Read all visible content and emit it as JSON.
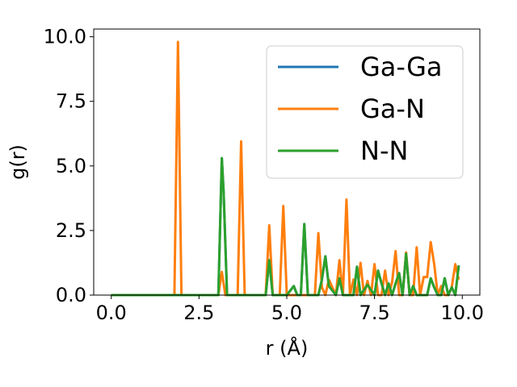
{
  "chart_data": {
    "type": "line",
    "xlabel": "r (Å)",
    "ylabel": "g(r)",
    "xlim": [
      -0.5,
      10.5
    ],
    "ylim": [
      0,
      10.3
    ],
    "xticks": [
      0.0,
      2.5,
      5.0,
      7.5,
      10.0
    ],
    "xtick_labels": [
      "0.0",
      "2.5",
      "5.0",
      "7.5",
      "10.0"
    ],
    "yticks": [
      0.0,
      2.5,
      5.0,
      7.5,
      10.0
    ],
    "ytick_labels": [
      "0.0",
      "2.5",
      "5.0",
      "7.5",
      "10.0"
    ],
    "grid": false,
    "legend_position": "top-right",
    "series": [
      {
        "name": "Ga-Ga",
        "color": "#1f77b4",
        "x": [
          0.0,
          1.8,
          3.05,
          3.15,
          3.2,
          3.3,
          4.4,
          4.5,
          4.6,
          5.0,
          5.2,
          5.3,
          5.4,
          5.5,
          5.6,
          5.9,
          6.0,
          6.1,
          6.2,
          6.4,
          6.5,
          6.6,
          6.9,
          7.0,
          7.1,
          7.3,
          7.5,
          7.6,
          7.7,
          7.8,
          7.9,
          8.0,
          8.1,
          8.2,
          8.3,
          8.4,
          8.5,
          8.6,
          8.7,
          8.9,
          9.0,
          9.1,
          9.2,
          9.3,
          9.4,
          9.5,
          9.6,
          9.7,
          9.8,
          9.9
        ],
        "y": [
          0.0,
          0.0,
          0.0,
          5.3,
          4.0,
          0.0,
          0.0,
          1.35,
          0.0,
          0.0,
          0.35,
          0.0,
          0.0,
          2.75,
          0.0,
          0.0,
          0.6,
          1.5,
          0.35,
          0.0,
          0.65,
          0.0,
          0.0,
          1.1,
          0.0,
          0.4,
          0.0,
          0.95,
          0.45,
          0.0,
          0.45,
          0.0,
          0.45,
          0.85,
          0.0,
          1.6,
          0.0,
          0.35,
          0.0,
          0.0,
          0.0,
          0.65,
          0.3,
          0.0,
          0.0,
          0.65,
          0.0,
          0.3,
          0.0,
          1.15
        ]
      },
      {
        "name": "Ga-N",
        "color": "#ff7f0e",
        "x": [
          0.0,
          1.8,
          1.9,
          2.0,
          3.05,
          3.15,
          3.25,
          3.6,
          3.7,
          3.8,
          4.4,
          4.5,
          4.6,
          4.8,
          4.9,
          5.0,
          5.8,
          5.9,
          6.0,
          6.1,
          6.2,
          6.4,
          6.5,
          6.6,
          6.7,
          6.8,
          6.9,
          7.0,
          7.1,
          7.2,
          7.3,
          7.4,
          7.5,
          7.6,
          7.7,
          7.8,
          7.9,
          8.0,
          8.1,
          8.2,
          8.3,
          8.4,
          8.5,
          8.6,
          8.7,
          8.8,
          8.9,
          9.0,
          9.1,
          9.2,
          9.3,
          9.4,
          9.5,
          9.6,
          9.7,
          9.8,
          9.9
        ],
        "y": [
          0.0,
          0.0,
          9.8,
          0.0,
          0.0,
          0.9,
          0.0,
          0.0,
          5.95,
          0.0,
          0.0,
          2.7,
          0.0,
          0.0,
          3.45,
          0.0,
          0.0,
          2.4,
          0.3,
          0.0,
          0.6,
          0.0,
          1.35,
          0.0,
          3.7,
          0.0,
          0.6,
          0.0,
          1.25,
          0.0,
          0.55,
          0.0,
          1.2,
          0.0,
          0.0,
          0.95,
          0.0,
          0.5,
          1.7,
          0.0,
          0.0,
          1.65,
          0.0,
          0.0,
          1.85,
          0.0,
          0.7,
          0.7,
          2.05,
          1.2,
          0.0,
          0.35,
          0.0,
          0.0,
          0.3,
          1.2,
          0.6
        ]
      },
      {
        "name": "N-N",
        "color": "#2ca02c",
        "x": [
          0.0,
          1.8,
          3.05,
          3.15,
          3.2,
          3.3,
          4.4,
          4.5,
          4.6,
          5.0,
          5.2,
          5.3,
          5.4,
          5.5,
          5.6,
          5.9,
          6.0,
          6.1,
          6.2,
          6.4,
          6.5,
          6.6,
          6.9,
          7.0,
          7.1,
          7.3,
          7.5,
          7.6,
          7.7,
          7.8,
          7.9,
          8.0,
          8.1,
          8.2,
          8.3,
          8.4,
          8.5,
          8.6,
          8.7,
          8.9,
          9.0,
          9.1,
          9.2,
          9.3,
          9.4,
          9.5,
          9.6,
          9.7,
          9.8,
          9.9
        ],
        "y": [
          0.0,
          0.0,
          0.0,
          5.3,
          4.0,
          0.0,
          0.0,
          1.35,
          0.0,
          0.0,
          0.35,
          0.0,
          0.0,
          2.75,
          0.0,
          0.0,
          0.6,
          1.5,
          0.35,
          0.0,
          0.65,
          0.0,
          0.0,
          1.1,
          0.0,
          0.4,
          0.0,
          0.95,
          0.45,
          0.0,
          0.45,
          0.0,
          0.45,
          0.85,
          0.0,
          1.6,
          0.0,
          0.35,
          0.0,
          0.0,
          0.0,
          0.65,
          0.3,
          0.0,
          0.0,
          0.65,
          0.0,
          0.3,
          0.0,
          1.15
        ]
      }
    ]
  }
}
